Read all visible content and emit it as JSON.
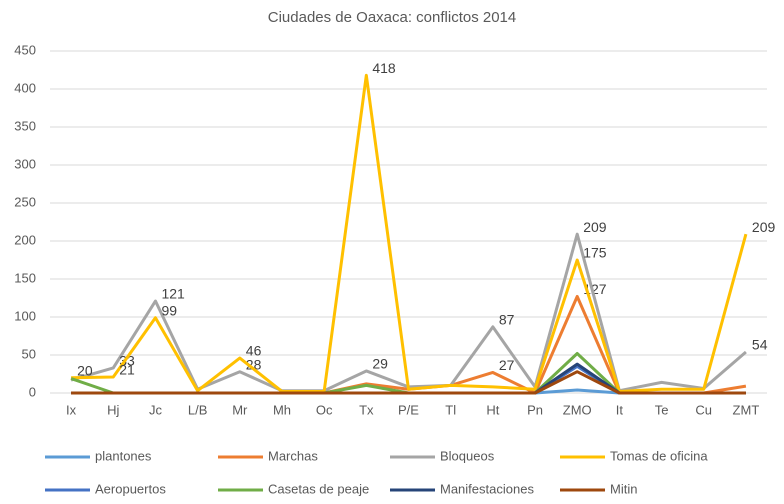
{
  "chart_data": {
    "type": "line",
    "title": "Ciudades de Oaxaca: conflictos 2014",
    "categories": [
      "Ix",
      "Hj",
      "Jc",
      "L/B",
      "Mr",
      "Mh",
      "Oc",
      "Tx",
      "P/E",
      "Tl",
      "Ht",
      "Pn",
      "ZMO",
      "It",
      "Te",
      "Cu",
      "ZMT"
    ],
    "ylim": [
      0,
      450
    ],
    "yticks": [
      0,
      50,
      100,
      150,
      200,
      250,
      300,
      350,
      400,
      450
    ],
    "grid": true,
    "series": [
      {
        "name": "plantones",
        "color": "#5b9bd5",
        "values": [
          0,
          0,
          0,
          0,
          0,
          0,
          0,
          0,
          0,
          0,
          0,
          0,
          4,
          0,
          0,
          0,
          0
        ]
      },
      {
        "name": "Marchas",
        "color": "#ed7d31",
        "show_labels": true,
        "values": [
          0,
          0,
          0,
          0,
          0,
          0,
          0,
          12,
          5,
          10,
          27,
          0,
          127,
          0,
          0,
          0,
          9
        ]
      },
      {
        "name": "Bloqueos",
        "color": "#a5a5a5",
        "show_labels": true,
        "values": [
          17,
          33,
          121,
          5,
          28,
          3,
          3,
          29,
          8,
          10,
          87,
          8,
          209,
          3,
          14,
          6,
          54
        ]
      },
      {
        "name": "Tomas de oficina",
        "color": "#ffc000",
        "show_labels": true,
        "values": [
          20,
          21,
          99,
          3,
          46,
          2,
          2,
          418,
          5,
          10,
          8,
          5,
          175,
          2,
          5,
          5,
          209
        ]
      },
      {
        "name": "Aeropuertos",
        "color": "#4472c4",
        "values": [
          0,
          0,
          0,
          0,
          0,
          0,
          0,
          0,
          0,
          0,
          0,
          0,
          35,
          0,
          0,
          0,
          0
        ]
      },
      {
        "name": "Casetas de peaje",
        "color": "#70ad47",
        "values": [
          19,
          0,
          0,
          0,
          0,
          0,
          0,
          10,
          0,
          0,
          0,
          0,
          52,
          0,
          0,
          0,
          0
        ]
      },
      {
        "name": "Manifestaciones",
        "color": "#264478",
        "values": [
          0,
          0,
          0,
          0,
          0,
          0,
          0,
          0,
          0,
          0,
          0,
          0,
          38,
          0,
          0,
          0,
          0
        ]
      },
      {
        "name": "Mitin",
        "color": "#9e480e",
        "values": [
          0,
          0,
          0,
          0,
          0,
          0,
          0,
          0,
          0,
          0,
          0,
          0,
          28,
          0,
          0,
          0,
          0
        ]
      }
    ]
  }
}
